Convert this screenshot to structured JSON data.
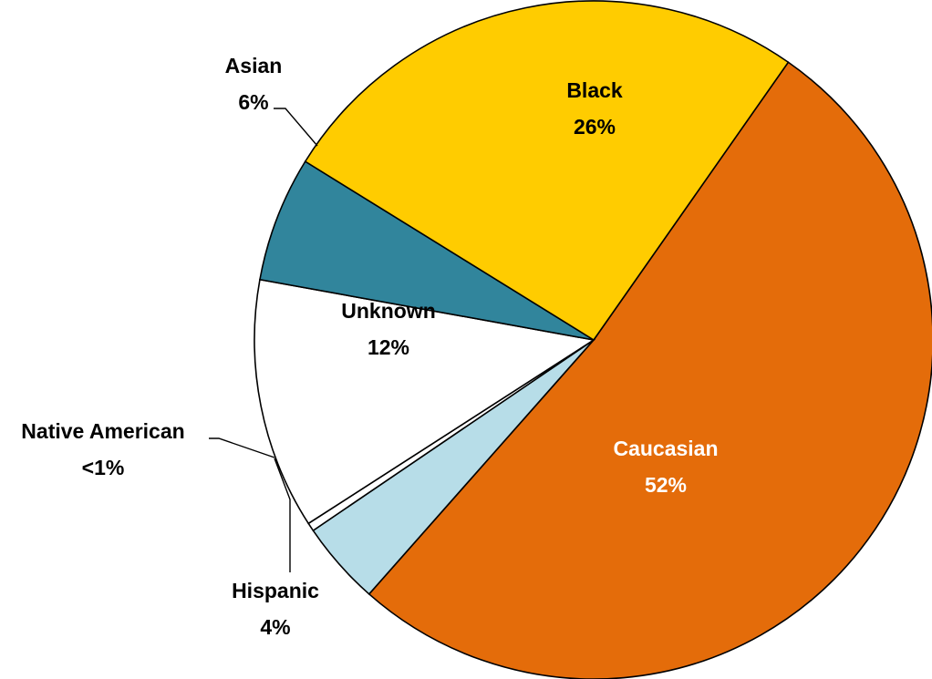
{
  "chart_data": {
    "type": "pie",
    "title": "",
    "start_angle_deg": 55,
    "direction": "clockwise",
    "slices": [
      {
        "name": "Caucasian",
        "value": 52,
        "label": "52%",
        "color": "#e46c0a",
        "label_color": "#ffffff"
      },
      {
        "name": "Hispanic",
        "value": 4,
        "label": "4%",
        "color": "#b7dde8",
        "label_color": "#000000"
      },
      {
        "name": "Native American",
        "value": 0.4,
        "label": "<1%",
        "color": "#ffffff",
        "label_color": "#000000"
      },
      {
        "name": "Unknown",
        "value": 12,
        "label": "12%",
        "color": "#ffffff",
        "label_color": "#000000"
      },
      {
        "name": "Asian",
        "value": 6,
        "label": "6%",
        "color": "#31859c",
        "label_color": "#000000"
      },
      {
        "name": "Black",
        "value": 26,
        "label": "26%",
        "color": "#ffcc00",
        "label_color": "#000000"
      }
    ]
  }
}
